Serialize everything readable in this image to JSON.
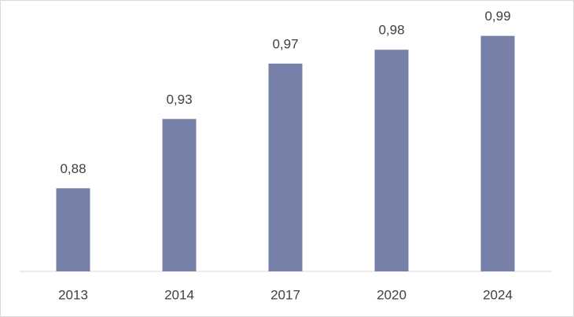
{
  "chart_data": {
    "type": "bar",
    "categories": [
      "2013",
      "2014",
      "2017",
      "2020",
      "2024"
    ],
    "values": [
      0.88,
      0.93,
      0.97,
      0.98,
      0.99
    ],
    "value_labels": [
      "0,88",
      "0,93",
      "0,97",
      "0,98",
      "0,99"
    ],
    "color": "#7680a8",
    "ylim": [
      0.82,
      1.0
    ]
  }
}
